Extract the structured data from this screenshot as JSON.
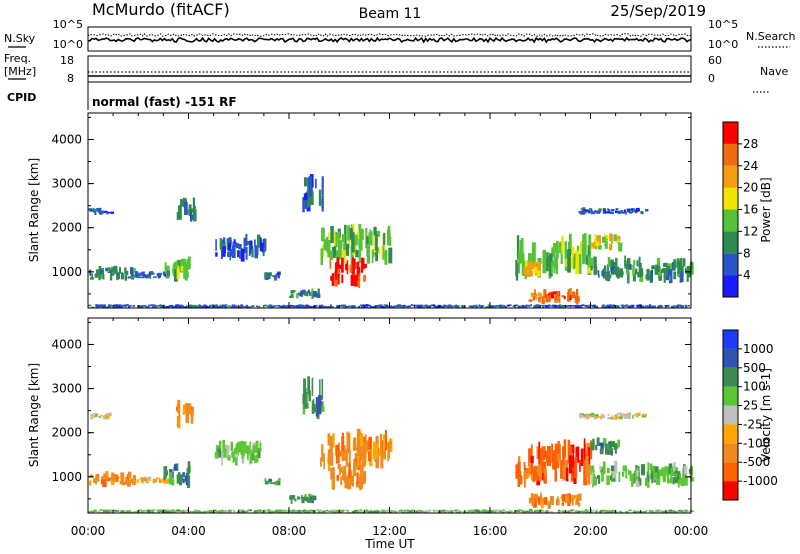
{
  "header": {
    "station": "McMurdo (fitACF)",
    "beam": "Beam 11",
    "date": "25/Sep/2019"
  },
  "top_panels": {
    "nsky_label": "N.Sky",
    "nsky_ticks": [
      "10^5",
      "10^0"
    ],
    "nsearch_label": "N.Search",
    "nsearch_ticks": [
      "10^5",
      "10^0"
    ],
    "freq_label_1": "Freq.",
    "freq_label_2": "[MHz]",
    "freq_ticks": [
      "18",
      "8"
    ],
    "nave_label": "Nave",
    "nave_ticks": [
      "60",
      "0"
    ],
    "cpid_label": "CPID",
    "cpid_text": "normal (fast) -151 RF"
  },
  "colors": {
    "power": [
      "#1a1aff",
      "#2a55c8",
      "#2e8a4e",
      "#55c238",
      "#f0e400",
      "#f59d10",
      "#f06a10",
      "#ff0000"
    ],
    "velocity": [
      "#ff0000",
      "#ff6000",
      "#f08a20",
      "#ffa400",
      "#c0c0c0",
      "#5cc632",
      "#3c8c50",
      "#2f55b0",
      "#1e3cff"
    ]
  },
  "chart_data": [
    {
      "type": "heatmap",
      "quantity": "Power",
      "ylabel": "Slant Range [km]",
      "yticks": [
        "1000",
        "2000",
        "3000",
        "4000"
      ],
      "ylim": [
        180,
        4600
      ],
      "xlim": [
        0,
        24
      ],
      "colorbar_label": "Power [dB]",
      "colorbar_ticks": [
        "4",
        "8",
        "12",
        "16",
        "20",
        "24",
        "28"
      ],
      "colorbar_range": [
        0,
        32
      ],
      "regions": [
        {
          "t": [
            0.0,
            1.8
          ],
          "r": [
            800,
            1100
          ],
          "level": 2
        },
        {
          "t": [
            0.0,
            0.9
          ],
          "r": [
            2300,
            2450
          ],
          "level": 1
        },
        {
          "t": [
            1.8,
            3.2
          ],
          "r": [
            850,
            1000
          ],
          "level": 1
        },
        {
          "t": [
            3.0,
            4.0
          ],
          "r": [
            800,
            1300
          ],
          "level": 3
        },
        {
          "t": [
            3.5,
            4.2
          ],
          "r": [
            2150,
            2700
          ],
          "level": 2
        },
        {
          "t": [
            5.0,
            7.0
          ],
          "r": [
            1300,
            1800
          ],
          "level": 1
        },
        {
          "t": [
            7.0,
            7.6
          ],
          "r": [
            800,
            1000
          ],
          "level": 1
        },
        {
          "t": [
            8.0,
            9.2
          ],
          "r": [
            400,
            600
          ],
          "level": 2
        },
        {
          "t": [
            9.2,
            12.0
          ],
          "r": [
            1200,
            2000
          ],
          "level": 3
        },
        {
          "t": [
            9.6,
            11.0
          ],
          "r": [
            700,
            1300
          ],
          "level": 7
        },
        {
          "t": [
            8.5,
            9.3
          ],
          "r": [
            2400,
            3200
          ],
          "level": 1
        },
        {
          "t": [
            17.0,
            18.6
          ],
          "r": [
            800,
            1700
          ],
          "level": 3
        },
        {
          "t": [
            17.3,
            18.0
          ],
          "r": [
            900,
            1300
          ],
          "level": 5
        },
        {
          "t": [
            18.6,
            20.0
          ],
          "r": [
            900,
            1800
          ],
          "level": 3
        },
        {
          "t": [
            20.0,
            21.2
          ],
          "r": [
            1500,
            1850
          ],
          "level": 4
        },
        {
          "t": [
            20.0,
            24.0
          ],
          "r": [
            800,
            1300
          ],
          "level": 2
        },
        {
          "t": [
            19.5,
            22.2
          ],
          "r": [
            2300,
            2450
          ],
          "level": 1
        },
        {
          "t": [
            17.5,
            19.5
          ],
          "r": [
            300,
            600
          ],
          "level": 6
        },
        {
          "t": [
            0.0,
            24.0
          ],
          "r": [
            190,
            260
          ],
          "level": 1
        }
      ]
    },
    {
      "type": "heatmap",
      "quantity": "Velocity",
      "ylabel": "Slant Range [km]",
      "yticks": [
        "1000",
        "2000",
        "3000",
        "4000"
      ],
      "ylim": [
        180,
        4600
      ],
      "xlim": [
        0,
        24
      ],
      "xlabel": "Time UT",
      "xticks": [
        "00:00",
        "04:00",
        "08:00",
        "12:00",
        "16:00",
        "20:00",
        "00:00"
      ],
      "colorbar_label": "Velocity [m s-1]",
      "colorbar_ticks": [
        "-1000",
        "-500",
        "-100",
        "-25",
        "25",
        "100",
        "500",
        "1000"
      ],
      "regions": [
        {
          "t": [
            0.0,
            1.8
          ],
          "r": [
            800,
            1100
          ],
          "level": 2
        },
        {
          "t": [
            0.0,
            0.9
          ],
          "r": [
            2300,
            2450
          ],
          "level": 4
        },
        {
          "t": [
            1.8,
            3.2
          ],
          "r": [
            850,
            1000
          ],
          "level": 3
        },
        {
          "t": [
            3.0,
            4.0
          ],
          "r": [
            800,
            1300
          ],
          "level": 6
        },
        {
          "t": [
            3.5,
            4.2
          ],
          "r": [
            2150,
            2700
          ],
          "level": 2
        },
        {
          "t": [
            5.0,
            7.0
          ],
          "r": [
            1300,
            1800
          ],
          "level": 5
        },
        {
          "t": [
            7.0,
            7.6
          ],
          "r": [
            800,
            1000
          ],
          "level": 6
        },
        {
          "t": [
            8.0,
            9.2
          ],
          "r": [
            400,
            600
          ],
          "level": 6
        },
        {
          "t": [
            9.2,
            12.0
          ],
          "r": [
            1200,
            2000
          ],
          "level": 2
        },
        {
          "t": [
            9.6,
            11.0
          ],
          "r": [
            700,
            1300
          ],
          "level": 2
        },
        {
          "t": [
            8.5,
            9.3
          ],
          "r": [
            2400,
            3200
          ],
          "level": 6
        },
        {
          "t": [
            17.0,
            18.6
          ],
          "r": [
            800,
            1700
          ],
          "level": 1
        },
        {
          "t": [
            17.3,
            18.0
          ],
          "r": [
            900,
            1300
          ],
          "level": 2
        },
        {
          "t": [
            18.6,
            20.0
          ],
          "r": [
            900,
            1800
          ],
          "level": 1
        },
        {
          "t": [
            20.0,
            21.2
          ],
          "r": [
            1500,
            1850
          ],
          "level": 6
        },
        {
          "t": [
            20.0,
            24.0
          ],
          "r": [
            800,
            1300
          ],
          "level": 5
        },
        {
          "t": [
            19.5,
            22.2
          ],
          "r": [
            2300,
            2450
          ],
          "level": 4
        },
        {
          "t": [
            17.5,
            19.5
          ],
          "r": [
            300,
            600
          ],
          "level": 2
        },
        {
          "t": [
            0.0,
            24.0
          ],
          "r": [
            190,
            260
          ],
          "level": 5
        }
      ]
    }
  ]
}
